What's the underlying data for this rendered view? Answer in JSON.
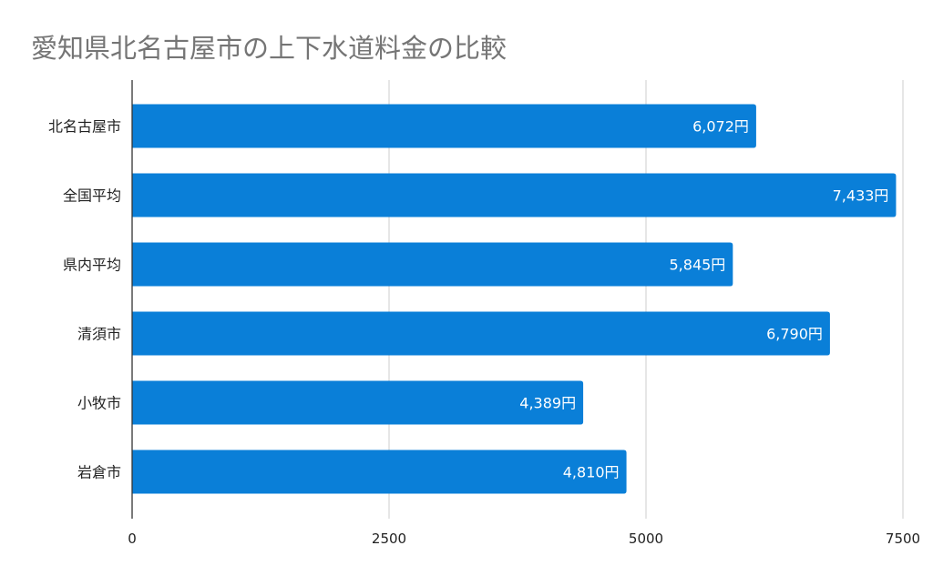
{
  "chart_data": {
    "type": "bar",
    "orientation": "horizontal",
    "title": "愛知県北名古屋市の上下水道料金の比較",
    "categories": [
      "北名古屋市",
      "全国平均",
      "県内平均",
      "清須市",
      "小牧市",
      "岩倉市"
    ],
    "values": [
      6072,
      7433,
      5845,
      6790,
      4389,
      4810
    ],
    "data_labels": [
      "6,072円",
      "7,433円",
      "5,845円",
      "6,790円",
      "4,389円",
      "4,810円"
    ],
    "x_ticks": [
      "0",
      "2500",
      "5000",
      "7500"
    ],
    "xlim": [
      0,
      7500
    ],
    "xlabel": "",
    "ylabel": "",
    "grid": true,
    "bar_color": "#0a7fd8",
    "grid_color": "#cccccc"
  }
}
